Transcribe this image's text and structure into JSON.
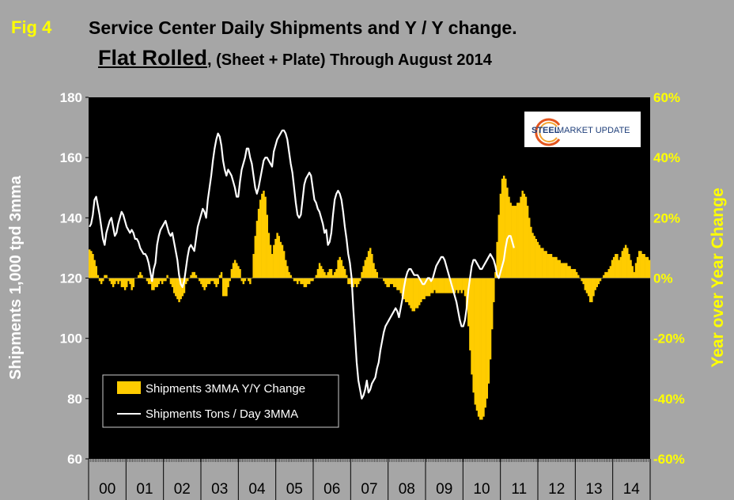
{
  "fig_label": "Fig 4",
  "title_line1": "Service Center Daily Shipments and Y / Y change.",
  "title_line2_main": "Flat Rolled",
  "title_line2_rest": ", (Sheet + Plate) Through August 2014",
  "logo": {
    "text_strong": "STEEL",
    "text_rest": " MARKET UPDATE"
  },
  "colors": {
    "background": "#a6a6a6",
    "plot": "#000000",
    "bars": "#ffcc00",
    "line": "#ffffff",
    "right_axis": "#ffff00"
  },
  "chart_data": {
    "type": "bar+line",
    "ylabel_left": "Shipments 1,000 tpd 3mma",
    "ylabel_right": "Year over Year Change",
    "ylim_left": [
      60,
      180
    ],
    "yticks_left": [
      "60",
      "80",
      "100",
      "120",
      "140",
      "160",
      "180"
    ],
    "ylim_right": [
      -60,
      60
    ],
    "yticks_right": [
      "-60%",
      "-40%",
      "-20%",
      "0%",
      "20%",
      "40%",
      "60%"
    ],
    "x_categories": [
      "00",
      "01",
      "02",
      "03",
      "04",
      "05",
      "06",
      "07",
      "08",
      "09",
      "10",
      "11",
      "12",
      "13",
      "14"
    ],
    "legend": [
      {
        "key": "bars",
        "label": "Shipments 3MMA Y/Y Change"
      },
      {
        "key": "line",
        "label": "Shipments Tons / Day 3MMA"
      }
    ],
    "series_bars_yoy_pct": [
      9.5,
      9,
      8,
      6,
      4,
      1,
      -1,
      -2,
      -1,
      1,
      1,
      0,
      -1,
      -2,
      -3,
      -2,
      -1,
      -2,
      -1,
      -3,
      -3,
      -4,
      -3,
      -1,
      -2,
      -4,
      -3,
      0,
      0,
      1,
      2,
      1,
      0,
      0,
      -1,
      -2,
      -2,
      -4,
      -4,
      -3,
      -3,
      -2,
      -1,
      -2,
      -1,
      -1,
      1,
      0,
      -2,
      -3,
      -5,
      -6,
      -7,
      -8,
      -7,
      -6,
      -5,
      -2,
      -1,
      0,
      1,
      2,
      2,
      1,
      0,
      -1,
      -2,
      -3,
      -4,
      -3,
      -2,
      -2,
      -1,
      -1,
      -2,
      -3,
      -2,
      1,
      2,
      -6,
      -6,
      -6,
      -3,
      -1,
      3,
      5,
      6,
      5,
      4,
      3,
      -1,
      -2,
      -1,
      0,
      -1,
      -2,
      0,
      8,
      14,
      19,
      23,
      26,
      28,
      29,
      27,
      21,
      15,
      11,
      8,
      11,
      13,
      15,
      14,
      12,
      11,
      9,
      6,
      4,
      2,
      1,
      0,
      -1,
      -1,
      -2,
      -1,
      -2,
      -2,
      -3,
      -3,
      -2,
      -2,
      -1,
      -1,
      0,
      1,
      3,
      5,
      4,
      3,
      2,
      1,
      2,
      3,
      3,
      1,
      2,
      3,
      6,
      7,
      6,
      4,
      3,
      1,
      -2,
      -2,
      -3,
      -3,
      -2,
      -3,
      -2,
      -1,
      2,
      4,
      6,
      7,
      9,
      10,
      8,
      5,
      3,
      2,
      0,
      0,
      0,
      -1,
      -2,
      -3,
      -3,
      -2,
      -2,
      -3,
      -3,
      -4,
      -4,
      -5,
      -6,
      -7,
      -8,
      -8,
      -9,
      -10,
      -11,
      -11,
      -10,
      -10,
      -9,
      -8,
      -7,
      -7,
      -6,
      -6,
      -6,
      -5,
      -5,
      -4,
      -5,
      -5,
      -5,
      -5,
      -5,
      -5,
      -5,
      -5,
      -5,
      -5,
      -5,
      -5,
      -4,
      -5,
      -4,
      -5,
      -4,
      -6,
      -10,
      -16,
      -24,
      -32,
      -38,
      -42,
      -44,
      -46,
      -47,
      -47,
      -46,
      -43,
      -40,
      -35,
      -27,
      -17,
      -8,
      2,
      12,
      21,
      28,
      33,
      34,
      33,
      30,
      27,
      25,
      24,
      24,
      24,
      25,
      25,
      27,
      29,
      28,
      27,
      24,
      20,
      17,
      15,
      14,
      13,
      12,
      11,
      10,
      10,
      9,
      9,
      8,
      8,
      8,
      7,
      7,
      7,
      6,
      6,
      5,
      5,
      5,
      5,
      4,
      4,
      3,
      3,
      3,
      2,
      1,
      0,
      -1,
      -2,
      -4,
      -5,
      -6,
      -8,
      -8,
      -6,
      -4,
      -3,
      -2,
      -1,
      0,
      1,
      2,
      2,
      3,
      4,
      6,
      7,
      8,
      8,
      6,
      7,
      9,
      10,
      11,
      10,
      8,
      6,
      4,
      2,
      5,
      7,
      9,
      9,
      8,
      8,
      7,
      7,
      6
    ],
    "series_line_tons_per_day": [
      137,
      138,
      141,
      146,
      147,
      144,
      141,
      137,
      133,
      131,
      135,
      137,
      139,
      140,
      137,
      134,
      135,
      138,
      140,
      142,
      141,
      139,
      137,
      136,
      135,
      136,
      135,
      133,
      133,
      132,
      130,
      129,
      128,
      128,
      127,
      125,
      122,
      119,
      123,
      125,
      131,
      134,
      136,
      137,
      138,
      139,
      137,
      135,
      134,
      135,
      132,
      129,
      126,
      121,
      118,
      117,
      119,
      123,
      127,
      130,
      131,
      130,
      129,
      133,
      137,
      139,
      141,
      143,
      142,
      140,
      146,
      150,
      154,
      159,
      163,
      166,
      168,
      167,
      164,
      159,
      156,
      154,
      156,
      155,
      154,
      152,
      150,
      147,
      147,
      152,
      156,
      158,
      160,
      163,
      163,
      160,
      158,
      154,
      150,
      148,
      150,
      153,
      156,
      159,
      160,
      160,
      159,
      158,
      157,
      162,
      164,
      166,
      167,
      168,
      169,
      169,
      168,
      166,
      162,
      158,
      155,
      150,
      145,
      141,
      140,
      141,
      146,
      151,
      153,
      154,
      155,
      154,
      150,
      146,
      145,
      143,
      142,
      140,
      138,
      135,
      136,
      131,
      132,
      135,
      141,
      146,
      148,
      149,
      148,
      146,
      142,
      137,
      133,
      128,
      125,
      120,
      110,
      101,
      92,
      86,
      83,
      80,
      81,
      83,
      86,
      82,
      83,
      85,
      86,
      87,
      90,
      92,
      96,
      99,
      102,
      104,
      105,
      106,
      107,
      108,
      109,
      110,
      109,
      107,
      110,
      113,
      117,
      120,
      122,
      123,
      123,
      122,
      121,
      121,
      121,
      120,
      119,
      118,
      118,
      119,
      120,
      120,
      119,
      120,
      122,
      124,
      125,
      126,
      127,
      127,
      126,
      124,
      122,
      120,
      118,
      116,
      114,
      112,
      109,
      106,
      104,
      104,
      106,
      110,
      116,
      120,
      124,
      126,
      126,
      125,
      124,
      123,
      123,
      124,
      125,
      126,
      127,
      128,
      127,
      126,
      124,
      121,
      120,
      122,
      124,
      126,
      130,
      133,
      134,
      134,
      132,
      130
    ]
  }
}
